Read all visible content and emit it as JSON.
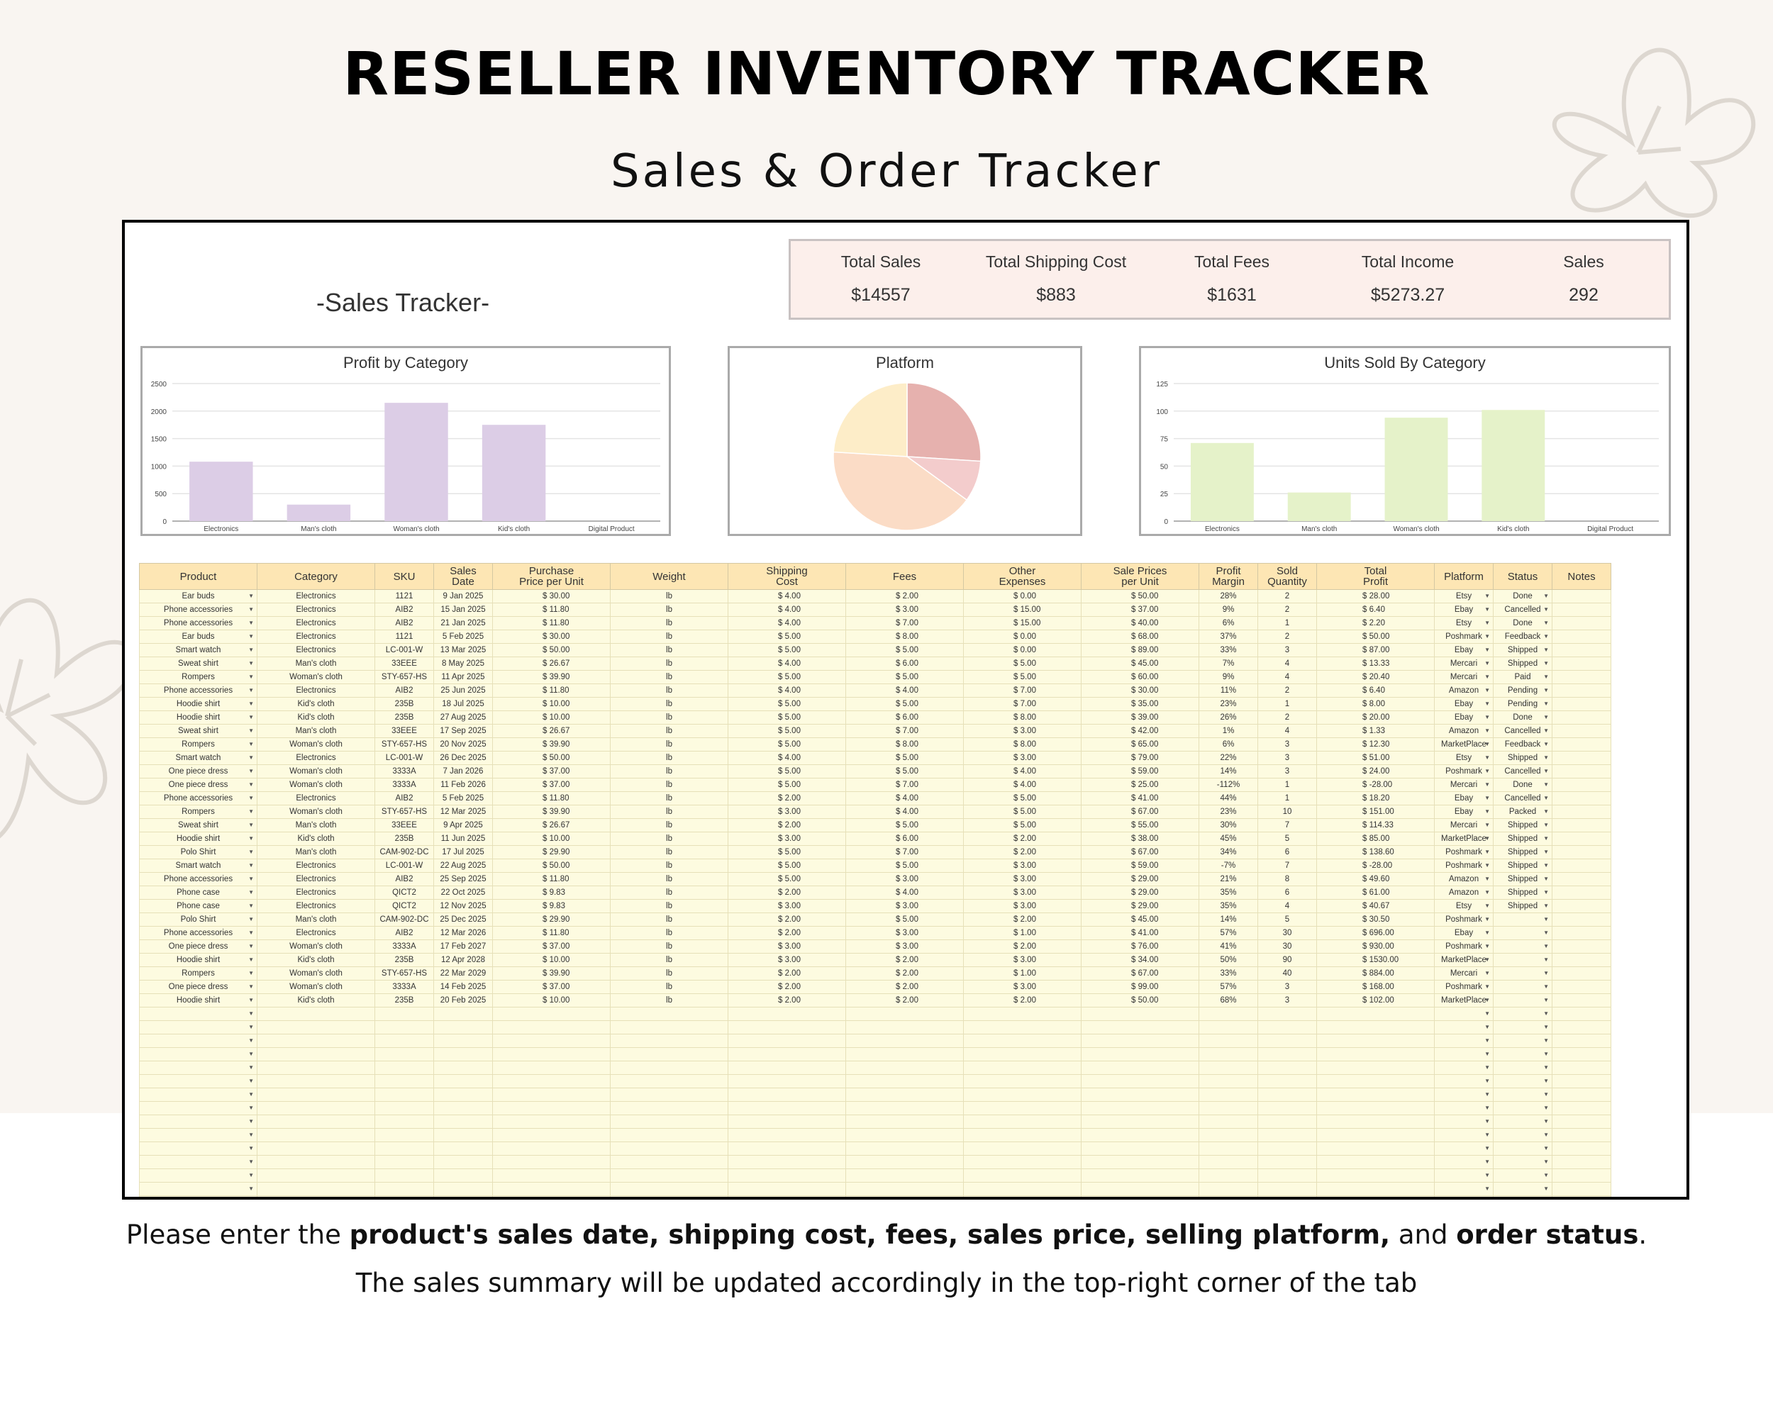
{
  "header": {
    "title": "RESELLER INVENTORY TRACKER",
    "subtitle": "Sales & Order Tracker"
  },
  "sheet": {
    "title": "-Sales Tracker-",
    "summary": [
      {
        "label": "Total Sales",
        "value": "$14557"
      },
      {
        "label": "Total Shipping Cost",
        "value": "$883"
      },
      {
        "label": "Total Fees",
        "value": "$1631"
      },
      {
        "label": "Total Income",
        "value": "$5273.27"
      },
      {
        "label": "Sales",
        "value": "292"
      }
    ]
  },
  "chart_data": [
    {
      "type": "bar",
      "title": "Profit by Category",
      "categories": [
        "Electronics",
        "Man's cloth",
        "Woman's cloth",
        "Kid's cloth",
        "Digital Product"
      ],
      "values": [
        1080,
        300,
        2150,
        1750,
        0
      ],
      "ylim": [
        0,
        2500
      ],
      "yticks": [
        0,
        500,
        1000,
        1500,
        2000,
        2500
      ],
      "color": "#dccde6",
      "grid": true
    },
    {
      "type": "pie",
      "title": "Platform",
      "slices": [
        {
          "value": 26,
          "color": "#e6b1ae"
        },
        {
          "value": 9,
          "color": "#f3cccc"
        },
        {
          "value": 41,
          "color": "#fbdcc6"
        },
        {
          "value": 24,
          "color": "#fdedc8"
        }
      ]
    },
    {
      "type": "bar",
      "title": "Units Sold By Category",
      "categories": [
        "Electronics",
        "Man's cloth",
        "Woman's cloth",
        "Kid's cloth",
        "Digital Product"
      ],
      "values": [
        71,
        26,
        94,
        101,
        0
      ],
      "ylim": [
        0,
        125
      ],
      "yticks": [
        0,
        25,
        50,
        75,
        100,
        125
      ],
      "color": "#e5f2c9",
      "grid": true
    }
  ],
  "table": {
    "columns": [
      "Product",
      "Category",
      "SKU",
      "Sales\nDate",
      "Purchase\nPrice per Unit",
      "Weight",
      "Shipping\nCost",
      "Fees",
      "Other\nExpenses",
      "Sale Prices\nper Unit",
      "Profit\nMargin",
      "Sold\nQuantity",
      "Total\nProfit",
      "Platform",
      "Status",
      "Notes"
    ],
    "rows": [
      [
        "Ear buds",
        "Electronics",
        "1121",
        "9 Jan 2025",
        "$  30.00",
        "lb",
        "$  4.00",
        "$  2.00",
        "$  0.00",
        "$  50.00",
        "28%",
        "2",
        "$  28.00",
        "Etsy",
        "Done"
      ],
      [
        "Phone accessories",
        "Electronics",
        "AIB2",
        "15 Jan 2025",
        "$  11.80",
        "lb",
        "$  4.00",
        "$  3.00",
        "$  15.00",
        "$  37.00",
        "9%",
        "2",
        "$  6.40",
        "Ebay",
        "Cancelled"
      ],
      [
        "Phone accessories",
        "Electronics",
        "AIB2",
        "21 Jan 2025",
        "$  11.80",
        "lb",
        "$  4.00",
        "$  7.00",
        "$  15.00",
        "$  40.00",
        "6%",
        "1",
        "$  2.20",
        "Etsy",
        "Done"
      ],
      [
        "Ear buds",
        "Electronics",
        "1121",
        "5 Feb 2025",
        "$  30.00",
        "lb",
        "$  5.00",
        "$  8.00",
        "$  0.00",
        "$  68.00",
        "37%",
        "2",
        "$  50.00",
        "Poshmark",
        "Feedback"
      ],
      [
        "Smart watch",
        "Electronics",
        "LC-001-W",
        "13 Mar 2025",
        "$  50.00",
        "lb",
        "$  5.00",
        "$  5.00",
        "$  0.00",
        "$  89.00",
        "33%",
        "3",
        "$  87.00",
        "Ebay",
        "Shipped"
      ],
      [
        "Sweat shirt",
        "Man's cloth",
        "33EEE",
        "8 May 2025",
        "$  26.67",
        "lb",
        "$  4.00",
        "$  6.00",
        "$  5.00",
        "$  45.00",
        "7%",
        "4",
        "$  13.33",
        "Mercari",
        "Shipped"
      ],
      [
        "Rompers",
        "Woman's cloth",
        "STY-657-HS",
        "11 Apr 2025",
        "$  39.90",
        "lb",
        "$  5.00",
        "$  5.00",
        "$  5.00",
        "$  60.00",
        "9%",
        "4",
        "$  20.40",
        "Mercari",
        "Paid"
      ],
      [
        "Phone accessories",
        "Electronics",
        "AIB2",
        "25 Jun 2025",
        "$  11.80",
        "lb",
        "$  4.00",
        "$  4.00",
        "$  7.00",
        "$  30.00",
        "11%",
        "2",
        "$  6.40",
        "Amazon",
        "Pending"
      ],
      [
        "Hoodie shirt",
        "Kid's cloth",
        "235B",
        "18 Jul 2025",
        "$  10.00",
        "lb",
        "$  5.00",
        "$  5.00",
        "$  7.00",
        "$  35.00",
        "23%",
        "1",
        "$  8.00",
        "Ebay",
        "Pending"
      ],
      [
        "Hoodie shirt",
        "Kid's cloth",
        "235B",
        "27 Aug 2025",
        "$  10.00",
        "lb",
        "$  5.00",
        "$  6.00",
        "$  8.00",
        "$  39.00",
        "26%",
        "2",
        "$  20.00",
        "Ebay",
        "Done"
      ],
      [
        "Sweat shirt",
        "Man's cloth",
        "33EEE",
        "17 Sep 2025",
        "$  26.67",
        "lb",
        "$  5.00",
        "$  7.00",
        "$  3.00",
        "$  42.00",
        "1%",
        "4",
        "$  1.33",
        "Amazon",
        "Cancelled"
      ],
      [
        "Rompers",
        "Woman's cloth",
        "STY-657-HS",
        "20 Nov 2025",
        "$  39.90",
        "lb",
        "$  5.00",
        "$  8.00",
        "$  8.00",
        "$  65.00",
        "6%",
        "3",
        "$  12.30",
        "MarketPlace",
        "Feedback"
      ],
      [
        "Smart watch",
        "Electronics",
        "LC-001-W",
        "26 Dec 2025",
        "$  50.00",
        "lb",
        "$  4.00",
        "$  5.00",
        "$  3.00",
        "$  79.00",
        "22%",
        "3",
        "$  51.00",
        "Etsy",
        "Shipped"
      ],
      [
        "One piece dress",
        "Woman's cloth",
        "3333A",
        "7 Jan 2026",
        "$  37.00",
        "lb",
        "$  5.00",
        "$  5.00",
        "$  4.00",
        "$  59.00",
        "14%",
        "3",
        "$  24.00",
        "Poshmark",
        "Cancelled"
      ],
      [
        "One piece dress",
        "Woman's cloth",
        "3333A",
        "11 Feb 2026",
        "$  37.00",
        "lb",
        "$  5.00",
        "$  7.00",
        "$  4.00",
        "$  25.00",
        "-112%",
        "1",
        "$  -28.00",
        "Mercari",
        "Done"
      ],
      [
        "Phone accessories",
        "Electronics",
        "AIB2",
        "5 Feb 2025",
        "$  11.80",
        "lb",
        "$  2.00",
        "$  4.00",
        "$  5.00",
        "$  41.00",
        "44%",
        "1",
        "$  18.20",
        "Ebay",
        "Cancelled"
      ],
      [
        "Rompers",
        "Woman's cloth",
        "STY-657-HS",
        "12 Mar 2025",
        "$  39.90",
        "lb",
        "$  3.00",
        "$  4.00",
        "$  5.00",
        "$  67.00",
        "23%",
        "10",
        "$  151.00",
        "Ebay",
        "Packed"
      ],
      [
        "Sweat shirt",
        "Man's cloth",
        "33EEE",
        "9 Apr 2025",
        "$  26.67",
        "lb",
        "$  2.00",
        "$  5.00",
        "$  5.00",
        "$  55.00",
        "30%",
        "7",
        "$  114.33",
        "Mercari",
        "Shipped"
      ],
      [
        "Hoodie shirt",
        "Kid's cloth",
        "235B",
        "11 Jun 2025",
        "$  10.00",
        "lb",
        "$  3.00",
        "$  6.00",
        "$  2.00",
        "$  38.00",
        "45%",
        "5",
        "$  85.00",
        "MarketPlace",
        "Shipped"
      ],
      [
        "Polo Shirt",
        "Man's cloth",
        "CAM-902-DC",
        "17 Jul 2025",
        "$  29.90",
        "lb",
        "$  5.00",
        "$  7.00",
        "$  2.00",
        "$  67.00",
        "34%",
        "6",
        "$  138.60",
        "Poshmark",
        "Shipped"
      ],
      [
        "Smart watch",
        "Electronics",
        "LC-001-W",
        "22 Aug 2025",
        "$  50.00",
        "lb",
        "$  5.00",
        "$  5.00",
        "$  3.00",
        "$  59.00",
        "-7%",
        "7",
        "$  -28.00",
        "Poshmark",
        "Shipped"
      ],
      [
        "Phone accessories",
        "Electronics",
        "AIB2",
        "25 Sep 2025",
        "$  11.80",
        "lb",
        "$  5.00",
        "$  3.00",
        "$  3.00",
        "$  29.00",
        "21%",
        "8",
        "$  49.60",
        "Amazon",
        "Shipped"
      ],
      [
        "Phone case",
        "Electronics",
        "QICT2",
        "22 Oct 2025",
        "$  9.83",
        "lb",
        "$  2.00",
        "$  4.00",
        "$  3.00",
        "$  29.00",
        "35%",
        "6",
        "$  61.00",
        "Amazon",
        "Shipped"
      ],
      [
        "Phone case",
        "Electronics",
        "QICT2",
        "12 Nov 2025",
        "$  9.83",
        "lb",
        "$  3.00",
        "$  3.00",
        "$  3.00",
        "$  29.00",
        "35%",
        "4",
        "$  40.67",
        "Etsy",
        "Shipped"
      ],
      [
        "Polo Shirt",
        "Man's cloth",
        "CAM-902-DC",
        "25 Dec 2025",
        "$  29.90",
        "lb",
        "$  2.00",
        "$  5.00",
        "$  2.00",
        "$  45.00",
        "14%",
        "5",
        "$  30.50",
        "Poshmark",
        ""
      ],
      [
        "Phone accessories",
        "Electronics",
        "AIB2",
        "12 Mar 2026",
        "$  11.80",
        "lb",
        "$  2.00",
        "$  3.00",
        "$  1.00",
        "$  41.00",
        "57%",
        "30",
        "$  696.00",
        "Ebay",
        ""
      ],
      [
        "One piece dress",
        "Woman's cloth",
        "3333A",
        "17 Feb 2027",
        "$  37.00",
        "lb",
        "$  3.00",
        "$  3.00",
        "$  2.00",
        "$  76.00",
        "41%",
        "30",
        "$  930.00",
        "Poshmark",
        ""
      ],
      [
        "Hoodie shirt",
        "Kid's cloth",
        "235B",
        "12 Apr 2028",
        "$  10.00",
        "lb",
        "$  3.00",
        "$  2.00",
        "$  3.00",
        "$  34.00",
        "50%",
        "90",
        "$  1530.00",
        "MarketPlace",
        ""
      ],
      [
        "Rompers",
        "Woman's cloth",
        "STY-657-HS",
        "22 Mar 2029",
        "$  39.90",
        "lb",
        "$  2.00",
        "$  2.00",
        "$  1.00",
        "$  67.00",
        "33%",
        "40",
        "$  884.00",
        "Mercari",
        ""
      ],
      [
        "One piece dress",
        "Woman's cloth",
        "3333A",
        "14 Feb 2025",
        "$  37.00",
        "lb",
        "$  2.00",
        "$  2.00",
        "$  3.00",
        "$  99.00",
        "57%",
        "3",
        "$  168.00",
        "Poshmark",
        ""
      ],
      [
        "Hoodie shirt",
        "Kid's cloth",
        "235B",
        "20 Feb 2025",
        "$  10.00",
        "lb",
        "$  2.00",
        "$  2.00",
        "$  2.00",
        "$  50.00",
        "68%",
        "3",
        "$  102.00",
        "MarketPlace",
        ""
      ]
    ]
  },
  "footer": {
    "line1_parts": [
      {
        "text": "Please enter the ",
        "bold": false
      },
      {
        "text": "product's sales date, shipping cost, fees, sales price, selling platform,",
        "bold": true
      },
      {
        "text": " and ",
        "bold": false
      },
      {
        "text": "order status",
        "bold": true
      },
      {
        "text": ".",
        "bold": false
      }
    ],
    "line2": "The sales summary will be updated accordingly in the top-right corner of the tab"
  }
}
